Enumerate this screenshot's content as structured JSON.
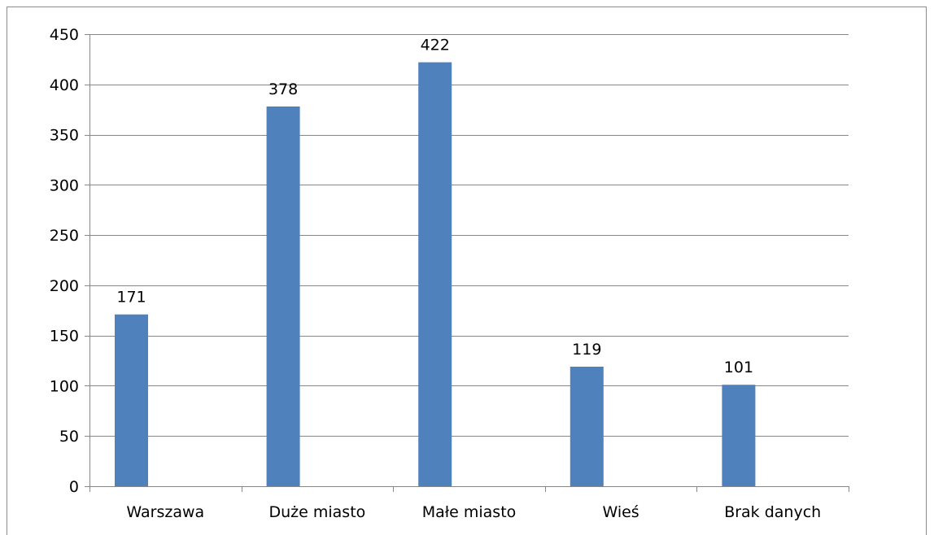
{
  "chart_data": {
    "type": "bar",
    "title": "",
    "xlabel": "",
    "ylabel": "",
    "categories": [
      "Warszawa",
      "Duże miasto",
      "Małe miasto",
      "Wieś",
      "Brak danych"
    ],
    "values": [
      171,
      378,
      422,
      119,
      101
    ],
    "data_labels": [
      "171",
      "378",
      "422",
      "119",
      "101"
    ],
    "ylim": [
      0,
      450
    ],
    "yticks": [
      0,
      50,
      100,
      150,
      200,
      250,
      300,
      350,
      400,
      450
    ],
    "ytick_labels": [
      "0",
      "50",
      "100",
      "150",
      "200",
      "250",
      "300",
      "350",
      "400",
      "450"
    ],
    "grid": true,
    "legend": "none",
    "bar_color": "#4f81bd",
    "grid_color": "#878787"
  }
}
